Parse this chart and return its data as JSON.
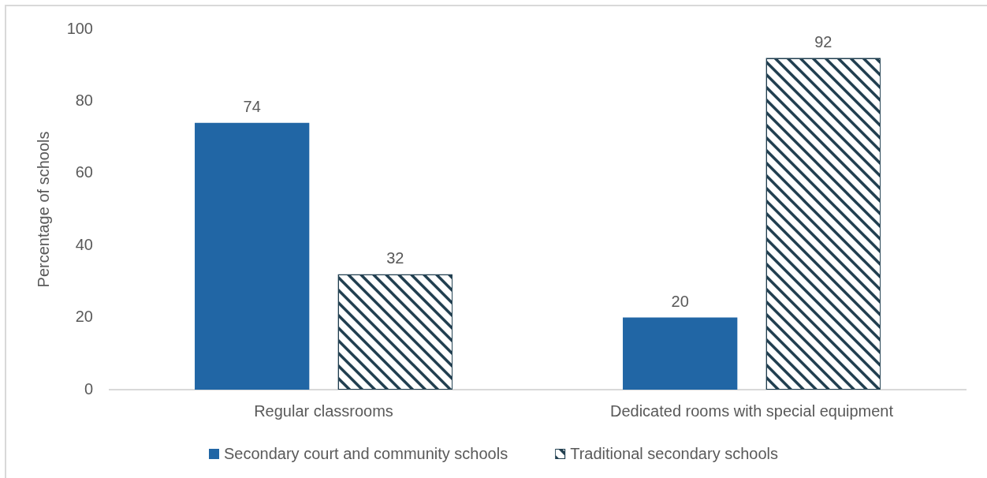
{
  "chart_data": {
    "type": "bar",
    "categories": [
      "Regular classrooms",
      "Dedicated rooms with special equipment"
    ],
    "series": [
      {
        "name": "Secondary court and community schools",
        "color": "#2166a5",
        "values": [
          74,
          20
        ]
      },
      {
        "name": "Traditional secondary schools",
        "color": "#213f50",
        "values": [
          32,
          92
        ]
      }
    ],
    "ylabel": "Percentage of schools",
    "ylim": [
      0,
      100
    ],
    "yticks": [
      0,
      20,
      40,
      60,
      80,
      100
    ],
    "grid": false,
    "legend": "bottom",
    "data_labels": true
  }
}
